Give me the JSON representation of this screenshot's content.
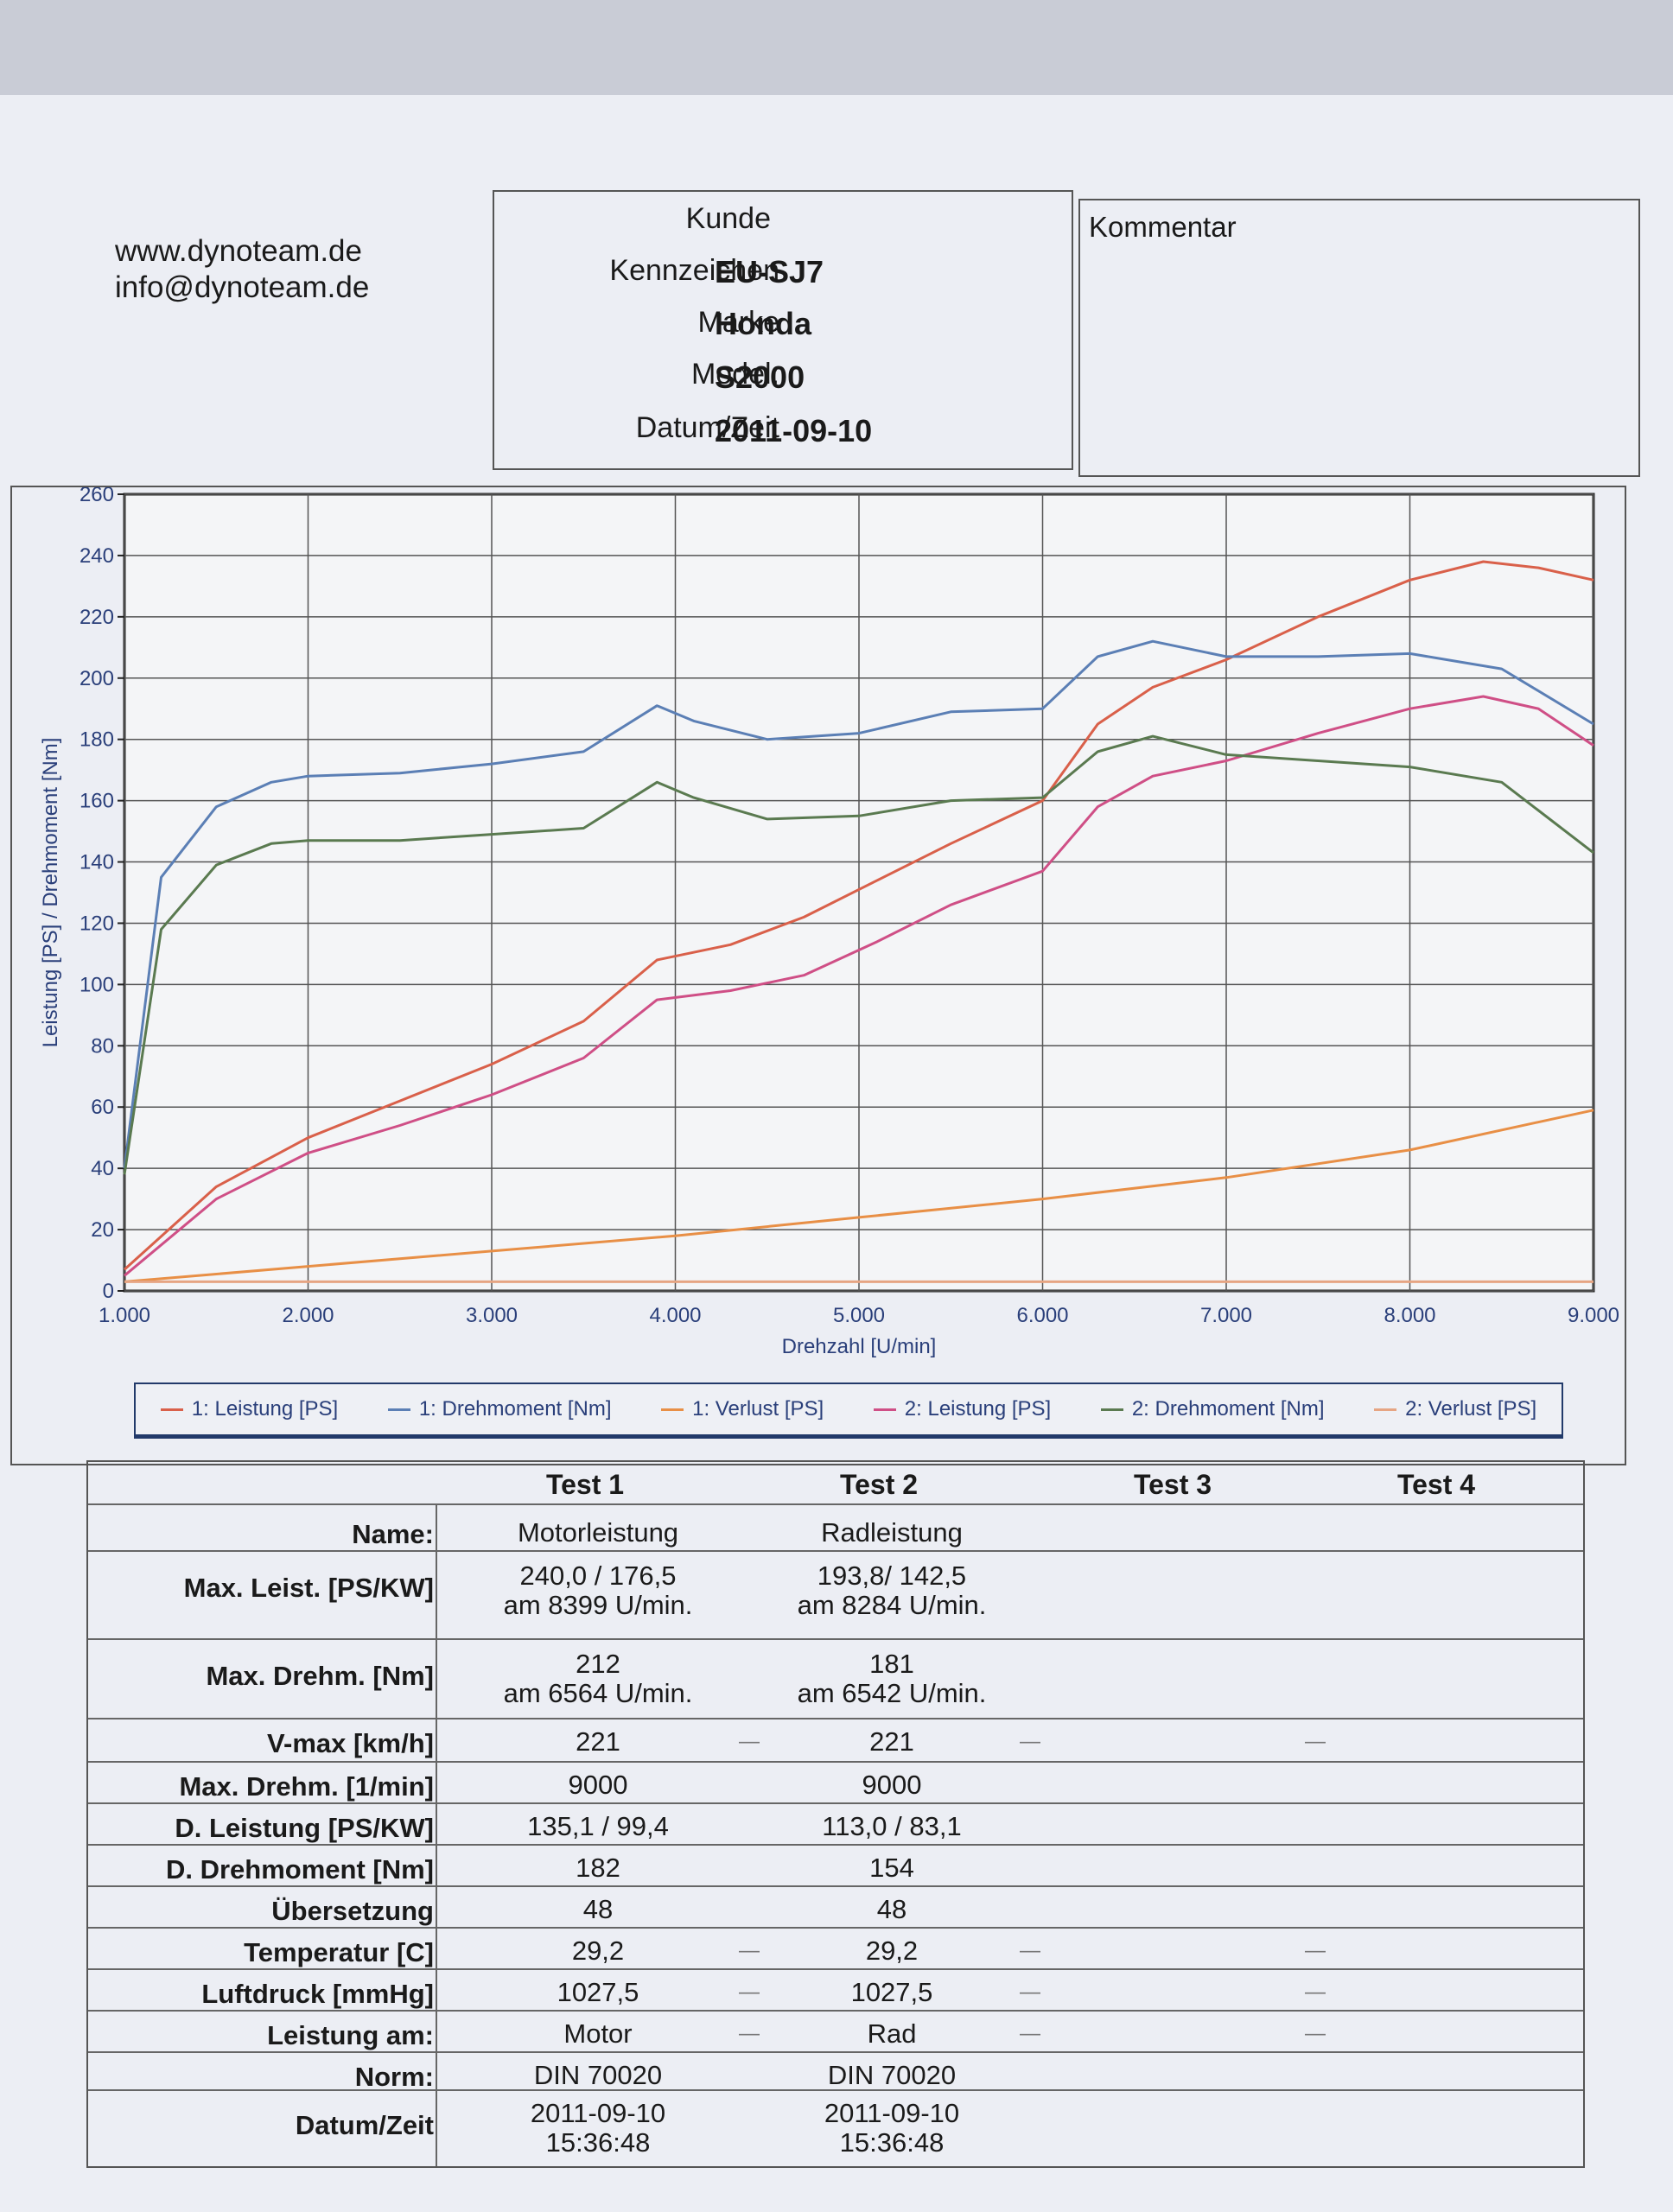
{
  "contact": {
    "web": "www.dynoteam.de",
    "email": "info@dynoteam.de"
  },
  "customer": {
    "kunde_label": "Kunde",
    "kennzeichen_label": "Kennzeichen",
    "kennzeichen": "EU-SJ7",
    "marke_label": "Marke",
    "marke": "Honda",
    "model_label": "Model:",
    "model": "S2000",
    "datum_label": "Datum/Zeit",
    "datum": "2011-09-10"
  },
  "comment": {
    "label": "Kommentar"
  },
  "chart_data": {
    "type": "line",
    "xlabel": "Drehzahl [U/min]",
    "ylabel": "Leistung [PS] / Drehmoment [Nm]",
    "xlim": [
      1000,
      9000
    ],
    "ylim": [
      0,
      260
    ],
    "x_ticks": [
      "1.000",
      "2.000",
      "3.000",
      "4.000",
      "5.000",
      "6.000",
      "7.000",
      "8.000",
      "9.000"
    ],
    "y_ticks": [
      "0",
      "20",
      "40",
      "60",
      "80",
      "100",
      "120",
      "140",
      "160",
      "180",
      "200",
      "220",
      "240",
      "260"
    ],
    "grid": true,
    "legend_placement": "bottom",
    "series": [
      {
        "name": "1: Leistung [PS]",
        "color": "#d9604a",
        "x": [
          1000,
          1500,
          2000,
          2500,
          3000,
          3500,
          3900,
          4300,
          4700,
          5100,
          5500,
          6000,
          6300,
          6600,
          7000,
          7500,
          8000,
          8400,
          8700,
          9000
        ],
        "y": [
          7,
          34,
          50,
          62,
          74,
          88,
          108,
          113,
          122,
          134,
          146,
          160,
          185,
          197,
          206,
          220,
          232,
          238,
          236,
          232
        ]
      },
      {
        "name": "1: Drehmoment [Nm]",
        "color": "#5b7fb5",
        "x": [
          1000,
          1200,
          1500,
          1800,
          2000,
          2500,
          3000,
          3500,
          3900,
          4100,
          4500,
          5000,
          5500,
          6000,
          6300,
          6600,
          7000,
          7500,
          8000,
          8500,
          9000
        ],
        "y": [
          40,
          135,
          158,
          166,
          168,
          169,
          172,
          176,
          191,
          186,
          180,
          182,
          189,
          190,
          207,
          212,
          207,
          207,
          208,
          203,
          185
        ]
      },
      {
        "name": "1: Verlust [PS]",
        "color": "#e88f46",
        "x": [
          1000,
          2000,
          3000,
          4000,
          5000,
          6000,
          7000,
          8000,
          9000
        ],
        "y": [
          3,
          8,
          13,
          18,
          24,
          30,
          37,
          46,
          59
        ]
      },
      {
        "name": "2: Leistung [PS]",
        "color": "#cf4f86",
        "x": [
          1000,
          1500,
          2000,
          2500,
          3000,
          3500,
          3900,
          4300,
          4700,
          5100,
          5500,
          6000,
          6300,
          6600,
          7000,
          7500,
          8000,
          8400,
          8700,
          9000
        ],
        "y": [
          5,
          30,
          45,
          54,
          64,
          76,
          95,
          98,
          103,
          114,
          126,
          137,
          158,
          168,
          173,
          182,
          190,
          194,
          190,
          178
        ]
      },
      {
        "name": "2: Drehmoment [Nm]",
        "color": "#5a7a50",
        "x": [
          1000,
          1200,
          1500,
          1800,
          2000,
          2500,
          3000,
          3500,
          3900,
          4100,
          4500,
          5000,
          5500,
          6000,
          6300,
          6600,
          7000,
          7500,
          8000,
          8500,
          9000
        ],
        "y": [
          38,
          118,
          139,
          146,
          147,
          147,
          149,
          151,
          166,
          161,
          154,
          155,
          160,
          161,
          176,
          181,
          175,
          173,
          171,
          166,
          143
        ]
      },
      {
        "name": "2: Verlust [PS]",
        "color": "#e6a583",
        "x": [
          1000,
          9000
        ],
        "y": [
          3,
          3
        ]
      }
    ]
  },
  "results": {
    "headers": [
      "Test 1",
      "Test 2",
      "Test 3",
      "Test 4"
    ],
    "rows": [
      {
        "label": "Name:",
        "t1": "Motorleistung",
        "t2": "Radleistung"
      },
      {
        "label": "Max. Leist. [PS/KW]",
        "t1": "240,0 / 176,5",
        "t1b": "am 8399 U/min.",
        "t2": "193,8/ 142,5",
        "t2b": "am 8284 U/min."
      },
      {
        "label": "Max. Drehm. [Nm]",
        "t1": "212",
        "t1b": "am 6564 U/min.",
        "t2": "181",
        "t2b": "am 6542 U/min."
      },
      {
        "label": "V-max [km/h]",
        "t1": "221",
        "t2": "221"
      },
      {
        "label": "Max. Drehm. [1/min]",
        "t1": "9000",
        "t2": "9000"
      },
      {
        "label": "D. Leistung [PS/KW]",
        "t1": "135,1 / 99,4",
        "t2": "113,0 / 83,1"
      },
      {
        "label": "D. Drehmoment [Nm]",
        "t1": "182",
        "t2": "154"
      },
      {
        "label": "Übersetzung",
        "t1": "48",
        "t2": "48"
      },
      {
        "label": "Temperatur [C]",
        "t1": "29,2",
        "t2": "29,2"
      },
      {
        "label": "Luftdruck [mmHg]",
        "t1": "1027,5",
        "t2": "1027,5"
      },
      {
        "label": "Leistung am:",
        "t1": "Motor",
        "t2": "Rad"
      },
      {
        "label": "Norm:",
        "t1": "DIN 70020",
        "t2": "DIN 70020"
      },
      {
        "label": "Datum/Zeit",
        "t1": "2011-09-10",
        "t1b": "15:36:48",
        "t2": "2011-09-10",
        "t2b": "15:36:48"
      }
    ],
    "dash": "—"
  }
}
